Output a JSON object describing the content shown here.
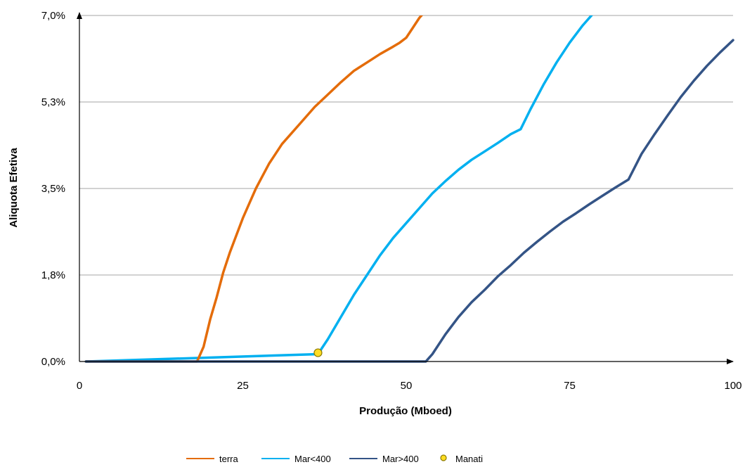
{
  "chart_data": {
    "type": "line",
    "xlabel": "Produção (Mboed)",
    "ylabel": "Aliquota Efetiva",
    "xlim": [
      0,
      100
    ],
    "ylim": [
      0,
      7.0
    ],
    "x_ticks": [
      "0",
      "25",
      "50",
      "75",
      "100"
    ],
    "x_tick_values": [
      0,
      25,
      50,
      75,
      100
    ],
    "y_ticks": [
      "0,0%",
      "1,8%",
      "3,5%",
      "5,3%",
      "7,0%"
    ],
    "y_tick_values": [
      0,
      1.75,
      3.5,
      5.25,
      7.0
    ],
    "grid": "horizontal",
    "legend_position": "bottom",
    "series": [
      {
        "name": "terra",
        "color": "#E46C0A",
        "x": [
          1,
          18,
          19,
          20,
          21,
          22,
          23,
          24,
          25,
          26,
          27,
          28,
          29,
          30,
          31,
          32,
          34,
          36,
          38,
          40,
          42,
          44,
          46,
          48,
          49,
          50,
          51,
          52,
          53
        ],
        "y": [
          0,
          0,
          0.3,
          0.85,
          1.3,
          1.8,
          2.2,
          2.55,
          2.9,
          3.2,
          3.5,
          3.75,
          4.0,
          4.2,
          4.4,
          4.55,
          4.85,
          5.15,
          5.4,
          5.65,
          5.88,
          6.05,
          6.22,
          6.37,
          6.45,
          6.55,
          6.75,
          6.95,
          7.1
        ]
      },
      {
        "name": "Mar<400",
        "color": "#00B0F0",
        "x": [
          1,
          36.6,
          37,
          38,
          40,
          42,
          44,
          46,
          48,
          50,
          52,
          54,
          56,
          58,
          60,
          62,
          64,
          66,
          67.5,
          69,
          71,
          73,
          75,
          77,
          79
        ],
        "y": [
          0,
          0.15,
          0.25,
          0.45,
          0.9,
          1.35,
          1.75,
          2.15,
          2.5,
          2.8,
          3.1,
          3.4,
          3.65,
          3.88,
          4.08,
          4.25,
          4.42,
          4.6,
          4.7,
          5.1,
          5.6,
          6.05,
          6.45,
          6.8,
          7.1
        ]
      },
      {
        "name": "Mar>400",
        "color": "#345486",
        "x": [
          1,
          53,
          54,
          56,
          58,
          60,
          62,
          64,
          66,
          68,
          70,
          72,
          74,
          76,
          78,
          80,
          82,
          84,
          86,
          88,
          90,
          92,
          94,
          96,
          98,
          100
        ],
        "y": [
          0,
          0,
          0.15,
          0.55,
          0.9,
          1.2,
          1.45,
          1.72,
          1.95,
          2.2,
          2.42,
          2.63,
          2.83,
          3.0,
          3.18,
          3.35,
          3.52,
          3.68,
          4.2,
          4.6,
          4.98,
          5.35,
          5.68,
          5.98,
          6.25,
          6.5
        ]
      }
    ],
    "markers": [
      {
        "name": "Manati",
        "x": 36.5,
        "y": 0.12,
        "fill": "#FFDD22",
        "stroke": "#8C7A00"
      }
    ]
  }
}
